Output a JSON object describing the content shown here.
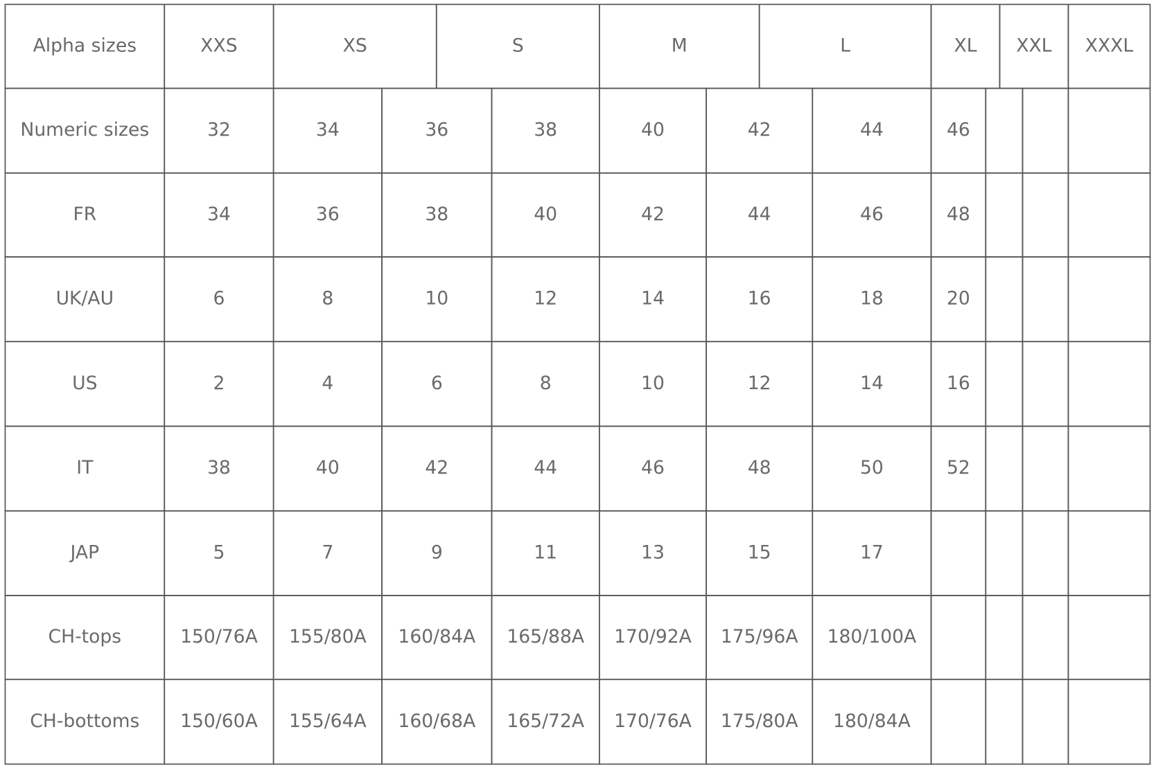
{
  "table": {
    "header": {
      "label": "Alpha sizes",
      "sizes": [
        "XXS",
        "XS",
        "S",
        "M",
        "L",
        "XL",
        "XXL",
        "XXXL"
      ]
    },
    "rows": [
      {
        "label": "Numeric sizes",
        "values": [
          32,
          34,
          36,
          38,
          40,
          42,
          44,
          46
        ]
      },
      {
        "label": "FR",
        "values": [
          34,
          36,
          38,
          40,
          42,
          44,
          46,
          48
        ]
      },
      {
        "label": "UK/AU",
        "values": [
          6,
          8,
          10,
          12,
          14,
          16,
          18,
          20
        ]
      },
      {
        "label": "US",
        "values": [
          2,
          4,
          6,
          8,
          10,
          12,
          14,
          16
        ]
      },
      {
        "label": "IT",
        "values": [
          38,
          40,
          42,
          44,
          46,
          48,
          50,
          52
        ]
      },
      {
        "label": "JAP",
        "values": [
          5,
          7,
          9,
          11,
          13,
          15,
          17
        ]
      },
      {
        "label": "CH-tops",
        "values": [
          "150/76A",
          "155/80A",
          "160/84A",
          "165/88A",
          "170/92A",
          "175/96A",
          "180/100A"
        ]
      },
      {
        "label": "CH-bottoms",
        "values": [
          "150/60A",
          "155/64A",
          "160/68A",
          "165/72A",
          "170/76A",
          "175/80A",
          "180/84A"
        ]
      }
    ]
  }
}
